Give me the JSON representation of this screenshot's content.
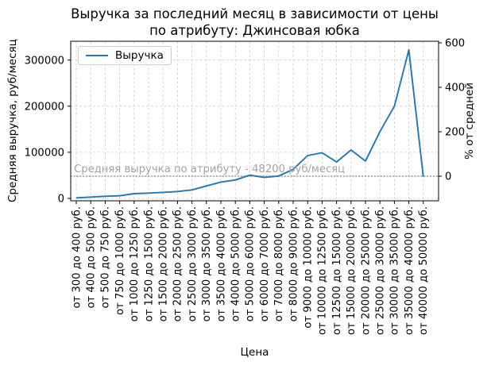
{
  "title": {
    "line1": "Выручка за последний месяц в зависимости от цены",
    "line2": "по атрибуту: Джинсовая юбка"
  },
  "legend": {
    "label": "Выручка"
  },
  "axes": {
    "x_label": "Цена",
    "y_left_label": "Средняя выручка, руб/месяц",
    "y_right_label": "% от средней",
    "y_left_ticks": [
      0,
      100000,
      200000,
      300000
    ],
    "y_right_ticks": [
      0,
      200,
      400,
      600
    ]
  },
  "annotation": {
    "text": "Средняя выручка по атрибуту - 48200 руб/месяц",
    "value": 48200
  },
  "colors": {
    "line": "#1f77b4",
    "grid": "#cccccc",
    "average_line": "#9e9e9e",
    "annotation_text": "#a3a3a3",
    "spine": "#000000"
  },
  "chart_data": {
    "type": "line",
    "title": "Выручка за последний месяц в зависимости от цены по атрибуту: Джинсовая юбка",
    "xlabel": "Цена",
    "ylabel_left": "Средняя выручка, руб/месяц",
    "ylabel_right": "% от средней",
    "legend_entries": [
      "Выручка"
    ],
    "legend_position": "upper left",
    "grid": true,
    "ylim_left": [
      -5000,
      341000
    ],
    "y_right_ticks": [
      0,
      200,
      400,
      600
    ],
    "y_right_meaning": "percent deviation from average: (value/average - 1) * 100",
    "average_line": {
      "value": 48200,
      "label": "Средняя выручка по атрибуту - 48200 руб/месяц",
      "style": "dotted"
    },
    "categories": [
      "от 300 до 400 руб.",
      "от 400 до 500 руб.",
      "от 500 до 750 руб.",
      "от 750 до 1000 руб.",
      "от 1000 до 1250 руб.",
      "от 1250 до 1500 руб.",
      "от 1500 до 2000 руб.",
      "от 2000 до 2500 руб.",
      "от 2500 до 3000 руб.",
      "от 3000 до 3500 руб.",
      "от 3500 до 4000 руб.",
      "от 4000 до 5000 руб.",
      "от 5000 до 6000 руб.",
      "от 6000 до 7000 руб.",
      "от 7000 до 8000 руб.",
      "от 8000 до 9000 руб.",
      "от 9000 до 10000 руб.",
      "от 10000 до 12500 руб.",
      "от 12500 до 15000 руб.",
      "от 15000 до 20000 руб.",
      "от 20000 до 25000 руб.",
      "от 25000 до 30000 руб.",
      "от 30000 до 35000 руб.",
      "от 35000 до 40000 руб.",
      "от 40000 до 50000 руб."
    ],
    "series": [
      {
        "name": "Выручка",
        "color": "#1f77b4",
        "values": [
          1200,
          2900,
          4600,
          5700,
          10300,
          11500,
          13000,
          15000,
          18500,
          27000,
          35500,
          40000,
          50500,
          45500,
          48500,
          63000,
          93000,
          99000,
          79000,
          105000,
          81000,
          145000,
          200000,
          322000,
          47000
        ]
      }
    ]
  }
}
